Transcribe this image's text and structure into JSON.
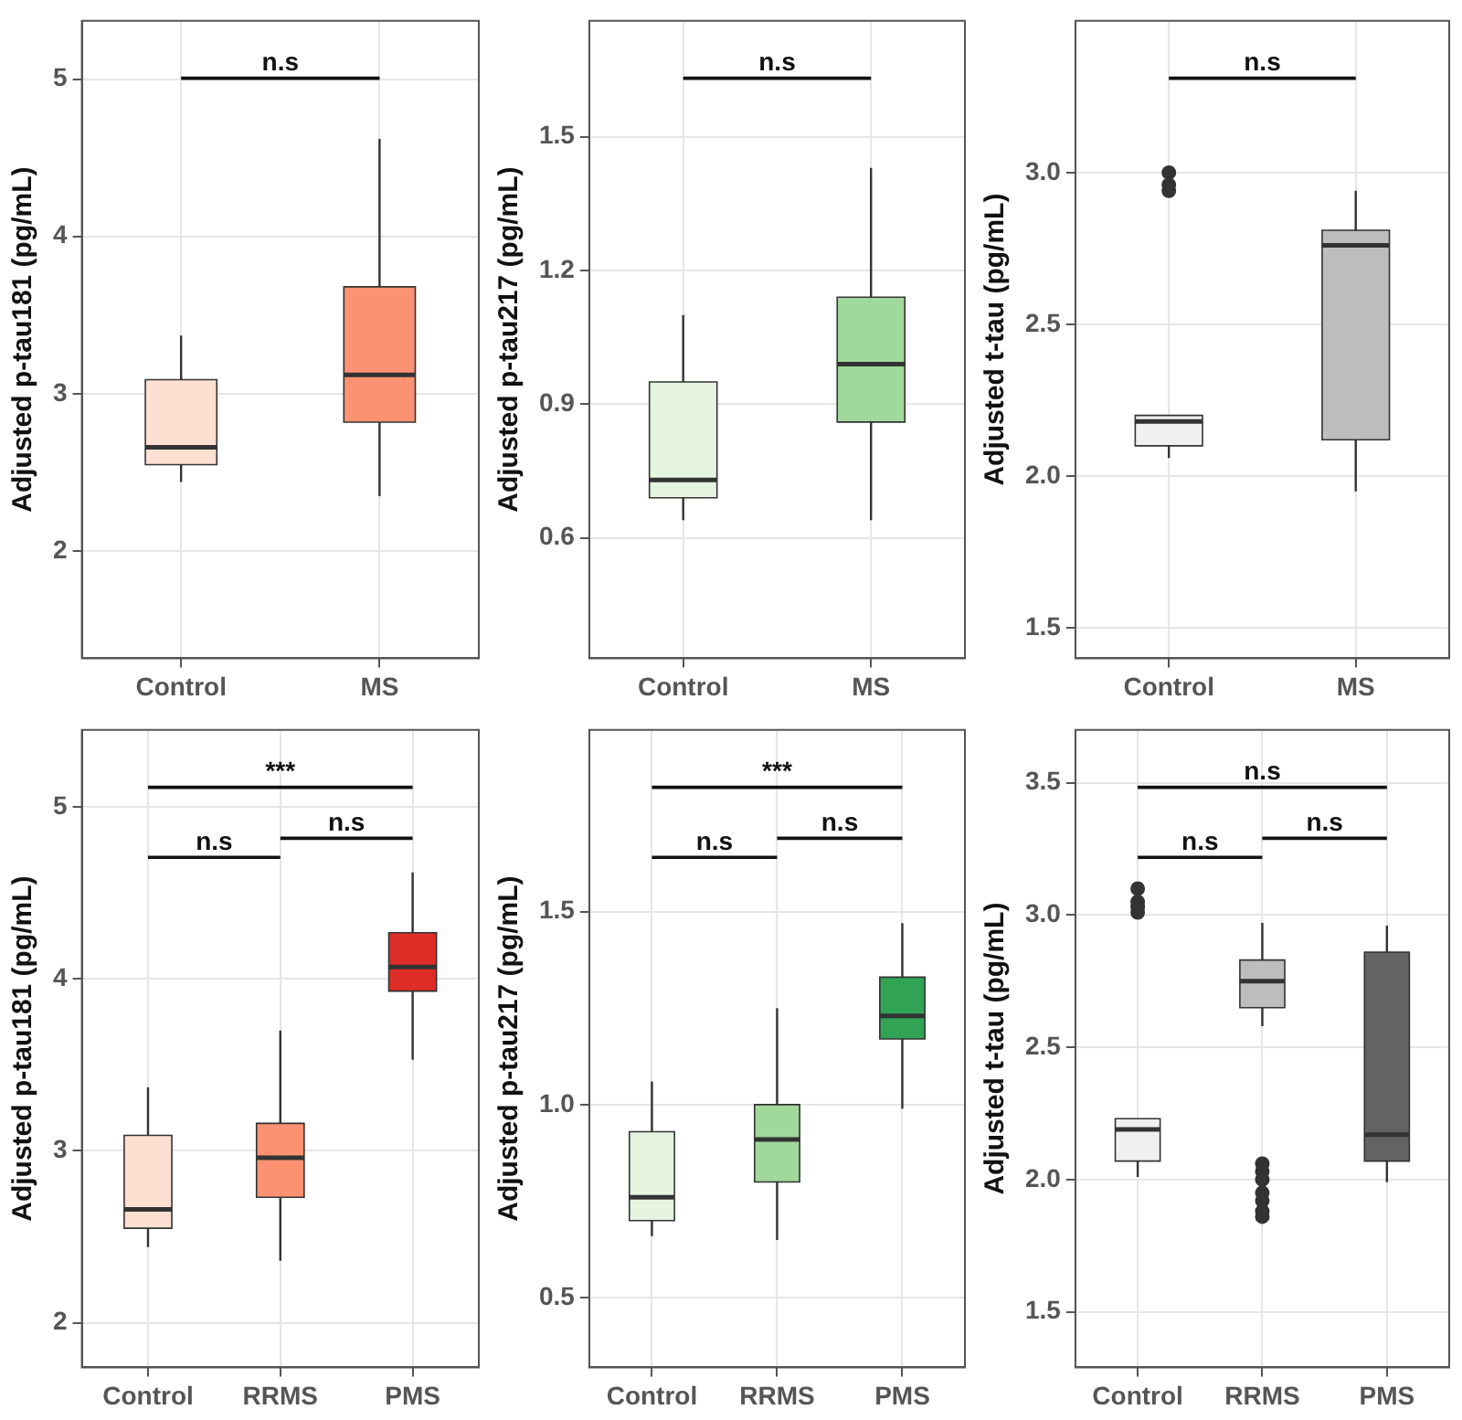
{
  "chart_data": [
    {
      "type": "box",
      "ylabel": "Adjusted p-tau181 (pg/mL)",
      "categories": [
        "Control",
        "MS"
      ],
      "colors": [
        "#fde0d2",
        "#fc9272"
      ],
      "ylim": [
        1.32,
        5.37
      ],
      "yticks": [
        2,
        3,
        4,
        5
      ],
      "grid": true,
      "annotations": [
        "n.s"
      ],
      "boxes": [
        {
          "low": 2.44,
          "q1": 2.55,
          "median": 2.66,
          "q3": 3.09,
          "high": 3.37
        },
        {
          "low": 2.35,
          "q1": 2.82,
          "median": 3.12,
          "q3": 3.68,
          "high": 4.62
        }
      ]
    },
    {
      "type": "box",
      "ylabel": "Adjusted p-tau217 (pg/mL)",
      "categories": [
        "Control",
        "MS"
      ],
      "colors": [
        "#e5f5e0",
        "#a1d99b"
      ],
      "ylim": [
        0.33,
        1.76
      ],
      "yticks": [
        0.6,
        0.9,
        1.2,
        1.5
      ],
      "grid": true,
      "annotations": [
        "n.s"
      ],
      "boxes": [
        {
          "low": 0.64,
          "q1": 0.69,
          "median": 0.73,
          "q3": 0.95,
          "high": 1.1
        },
        {
          "low": 0.64,
          "q1": 0.86,
          "median": 0.99,
          "q3": 1.14,
          "high": 1.43
        }
      ]
    },
    {
      "type": "box",
      "ylabel": "Adjusted t-tau (pg/mL)",
      "categories": [
        "Control",
        "MS"
      ],
      "colors": [
        "#f0f0f0",
        "#bdbdbd"
      ],
      "ylim": [
        1.4,
        3.5
      ],
      "yticks": [
        1.5,
        {
          "value": 2,
          "label": "2.0"
        },
        2.5,
        {
          "value": 3,
          "label": "3.0"
        }
      ],
      "grid": true,
      "annotations": [
        "n.s"
      ],
      "boxes": [
        {
          "low": 2.06,
          "q1": 2.1,
          "median": 2.18,
          "q3": 2.2,
          "high": 2.2,
          "outliers": [
            2.94,
            2.96,
            3.0
          ]
        },
        {
          "low": 1.95,
          "q1": 2.12,
          "median": 2.76,
          "q3": 2.81,
          "high": 2.94
        }
      ]
    },
    {
      "type": "box",
      "ylabel": "Adjusted p-tau181 (pg/mL)",
      "categories": [
        "Control",
        "RRMS",
        "PMS"
      ],
      "colors": [
        "#fde0d2",
        "#fc9272",
        "#de2d26"
      ],
      "ylim": [
        1.74,
        5.45
      ],
      "yticks": [
        2,
        3,
        4,
        5
      ],
      "grid": true,
      "annotations": [
        "***",
        "n.s",
        "n.s"
      ],
      "boxes": [
        {
          "low": 2.44,
          "q1": 2.55,
          "median": 2.66,
          "q3": 3.09,
          "high": 3.37
        },
        {
          "low": 2.36,
          "q1": 2.73,
          "median": 2.96,
          "q3": 3.16,
          "high": 3.7
        },
        {
          "low": 3.53,
          "q1": 3.93,
          "median": 4.07,
          "q3": 4.27,
          "high": 4.62
        }
      ]
    },
    {
      "type": "box",
      "ylabel": "Adjusted p-tau217 (pg/mL)",
      "categories": [
        "Control",
        "RRMS",
        "PMS"
      ],
      "colors": [
        "#e5f5e0",
        "#a1d99b",
        "#31a354"
      ],
      "ylim": [
        0.32,
        1.97
      ],
      "yticks": [
        0.5,
        {
          "value": 1,
          "label": "1.0"
        },
        1.5
      ],
      "grid": true,
      "annotations": [
        "***",
        "n.s",
        "n.s"
      ],
      "boxes": [
        {
          "low": 0.66,
          "q1": 0.7,
          "median": 0.76,
          "q3": 0.93,
          "high": 1.06
        },
        {
          "low": 0.65,
          "q1": 0.8,
          "median": 0.91,
          "q3": 1.0,
          "high": 1.25
        },
        {
          "low": 0.99,
          "q1": 1.17,
          "median": 1.23,
          "q3": 1.33,
          "high": 1.47
        }
      ]
    },
    {
      "type": "box",
      "ylabel": "Adjusted t-tau (pg/mL)",
      "categories": [
        "Control",
        "RRMS",
        "PMS"
      ],
      "colors": [
        "#f0f0f0",
        "#bdbdbd",
        "#636363"
      ],
      "ylim": [
        1.29,
        3.7
      ],
      "yticks": [
        1.5,
        {
          "value": 2,
          "label": "2.0"
        },
        2.5,
        {
          "value": 3,
          "label": "3.0"
        },
        3.5
      ],
      "grid": true,
      "annotations": [
        "n.s",
        "n.s",
        "n.s"
      ],
      "boxes": [
        {
          "low": 2.01,
          "q1": 2.07,
          "median": 2.19,
          "q3": 2.23,
          "high": 2.23,
          "outliers": [
            3.01,
            3.03,
            3.05,
            3.1
          ]
        },
        {
          "low": 2.58,
          "q1": 2.65,
          "median": 2.75,
          "q3": 2.83,
          "high": 2.97,
          "outliers": [
            1.86,
            1.88,
            1.92,
            1.95,
            2.0,
            2.03,
            2.06
          ]
        },
        {
          "low": 1.99,
          "q1": 2.07,
          "median": 2.17,
          "q3": 2.86,
          "high": 2.96
        }
      ]
    }
  ]
}
